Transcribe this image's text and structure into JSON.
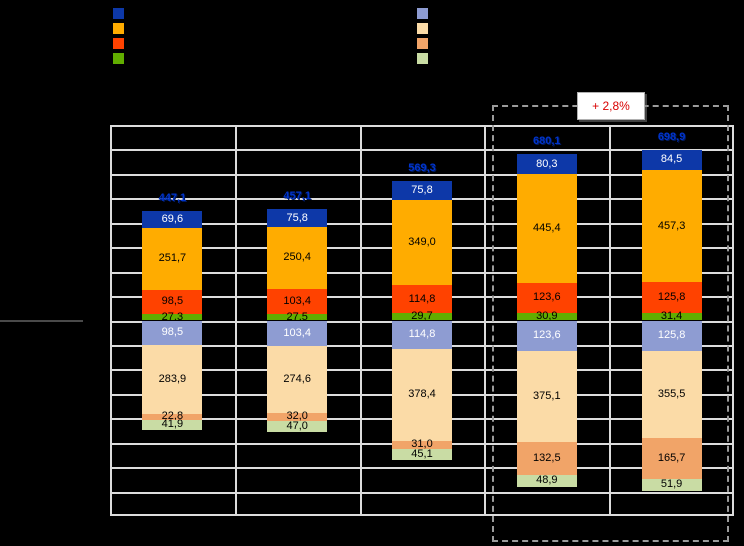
{
  "annotation": {
    "label": "+ 2,8%",
    "color": "#D90000"
  },
  "legend": {
    "left_group": [
      {
        "key": "dark-blue",
        "color": "#0D38A8"
      },
      {
        "key": "amber",
        "color": "#FFAC00"
      },
      {
        "key": "orange-red",
        "color": "#FF4200"
      },
      {
        "key": "green",
        "color": "#61AD00"
      }
    ],
    "right_group": [
      {
        "key": "periwinkle",
        "color": "#8E9CD2"
      },
      {
        "key": "peach",
        "color": "#FBDBA7"
      },
      {
        "key": "salmon",
        "color": "#F1A468"
      },
      {
        "key": "light-green",
        "color": "#C9DCA4"
      }
    ]
  },
  "chart_data": {
    "type": "bar",
    "subtype": "diverging-stacked",
    "columns": 5,
    "title": "",
    "axis": {
      "ymin": -800,
      "ymax": 800,
      "grid_step": 100,
      "tick_labels_visible": false,
      "grid": true
    },
    "totals": {
      "color": "#0034CC",
      "labels": [
        "447,1",
        "457,1",
        "569,3",
        "680,1",
        "698,9"
      ],
      "values": [
        447.1,
        457.1,
        569.3,
        680.1,
        698.9
      ]
    },
    "series_above_zero": [
      {
        "key": "dark-blue",
        "color": "#0D38A8",
        "label_color": "#FFFFFF",
        "values": [
          69.6,
          75.8,
          75.8,
          80.3,
          84.5
        ],
        "labels": [
          "69,6",
          "75,8",
          "75,8",
          "80,3",
          "84,5"
        ]
      },
      {
        "key": "amber",
        "color": "#FFAC00",
        "label_color": "#000000",
        "values": [
          251.7,
          250.4,
          349.0,
          445.4,
          457.3
        ],
        "labels": [
          "251,7",
          "250,4",
          "349,0",
          "445,4",
          "457,3"
        ]
      },
      {
        "key": "orange-red",
        "color": "#FF4200",
        "label_color": "#000000",
        "values": [
          98.5,
          103.4,
          114.8,
          123.6,
          125.8
        ],
        "labels": [
          "98,5",
          "103,4",
          "114,8",
          "123,6",
          "125,8"
        ]
      },
      {
        "key": "green",
        "color": "#61AD00",
        "label_color": "#000000",
        "values": [
          27.3,
          27.5,
          29.7,
          30.9,
          31.4
        ],
        "labels": [
          "27,3",
          "27,5",
          "29,7",
          "30,9",
          "31,4"
        ]
      }
    ],
    "series_below_zero": [
      {
        "key": "periwinkle",
        "color": "#8E9CD2",
        "label_color": "#FFFFFF",
        "values": [
          98.5,
          103.4,
          114.8,
          123.6,
          125.8
        ],
        "labels": [
          "98,5",
          "103,4",
          "114,8",
          "123,6",
          "125,8"
        ]
      },
      {
        "key": "peach",
        "color": "#FBDBA7",
        "label_color": "#000000",
        "values": [
          283.9,
          274.6,
          378.4,
          375.1,
          355.5
        ],
        "labels": [
          "283,9",
          "274,6",
          "378,4",
          "375,1",
          "355,5"
        ]
      },
      {
        "key": "salmon",
        "color": "#F1A468",
        "label_color": "#000000",
        "values": [
          22.8,
          32.0,
          31.0,
          132.5,
          165.7
        ],
        "labels": [
          "22,8",
          "32,0",
          "31,0",
          "132,5",
          "165,7"
        ]
      },
      {
        "key": "light-green",
        "color": "#C9DCA4",
        "label_color": "#000000",
        "values": [
          41.9,
          47.0,
          45.1,
          48.9,
          51.9
        ],
        "labels": [
          "41,9",
          "47,0",
          "45,1",
          "48,9",
          "51,9"
        ]
      }
    ],
    "highlight": {
      "dashed_box_columns": [
        4,
        5
      ]
    }
  }
}
